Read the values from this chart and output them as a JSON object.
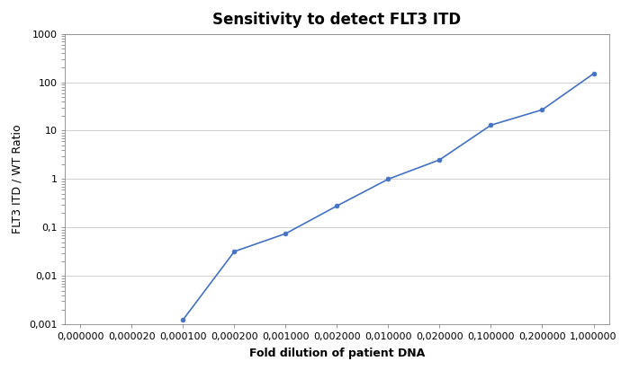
{
  "title": "Sensitivity to detect FLT3 ITD",
  "xlabel": "Fold dilution of patient DNA",
  "ylabel": "FLT3 ITD / WT Ratio",
  "x_actual": [
    0.0001,
    0.0002,
    0.001,
    0.002,
    0.01,
    0.02,
    0.1,
    0.2,
    1.0
  ],
  "y_values": [
    0.00125,
    0.032,
    0.075,
    0.28,
    1.0,
    2.5,
    13.0,
    27.0,
    150.0
  ],
  "x_tick_positions": [
    0,
    1,
    2,
    3,
    4,
    5,
    6,
    7,
    8,
    9,
    10
  ],
  "x_tick_labels": [
    "0,000000",
    "0,000020",
    "0,000100",
    "0,000200",
    "0,001000",
    "0,002000",
    "0,010000",
    "0,020000",
    "0,100000",
    "0,200000",
    "1,000000"
  ],
  "x_data_actual_vals": [
    0.0,
    2e-05,
    0.0001,
    0.0002,
    0.001,
    0.002,
    0.01,
    0.02,
    0.1,
    0.2,
    1.0
  ],
  "y_ticks": [
    0.001,
    0.01,
    0.1,
    1,
    10,
    100,
    1000
  ],
  "y_tick_labels": [
    "0,001",
    "0,01",
    "0,1",
    "1",
    "10",
    "100",
    "1000"
  ],
  "ylim": [
    0.001,
    1000
  ],
  "line_color": "#4472C4",
  "marker_color": "#4472C4",
  "background_color": "#ffffff",
  "grid_color": "#d0d0d0",
  "title_fontsize": 12,
  "label_fontsize": 9,
  "tick_fontsize": 8
}
